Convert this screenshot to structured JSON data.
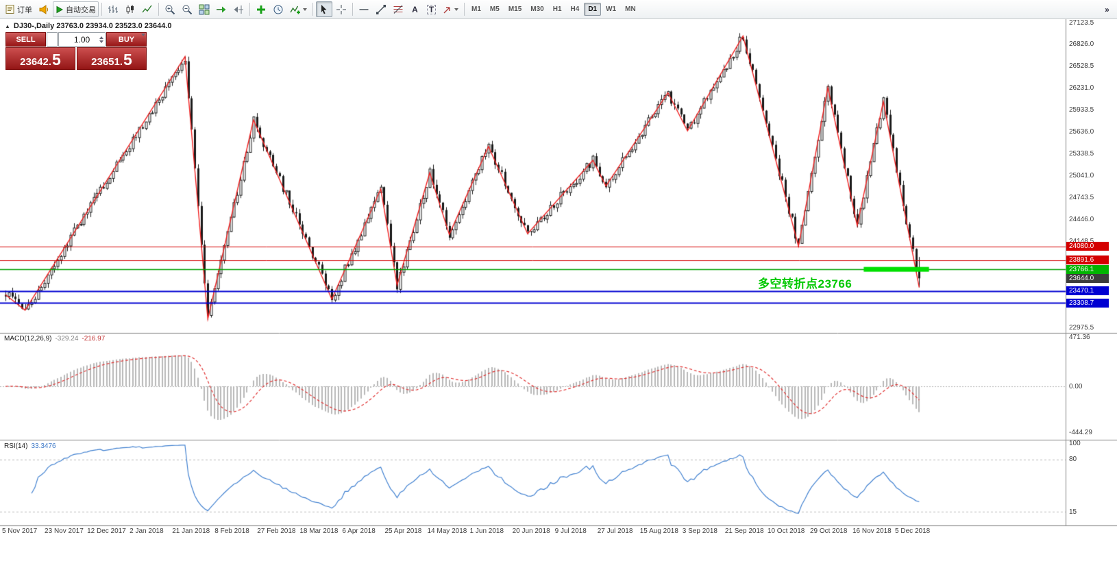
{
  "toolbar": {
    "orders_label": "订单",
    "autotrade_label": "自动交易",
    "timeframes": [
      "M1",
      "M5",
      "M15",
      "M30",
      "H1",
      "H4",
      "D1",
      "W1",
      "MN"
    ],
    "active_timeframe": "D1",
    "icon_glyphs": {
      "text_tool": "A",
      "label_tool": "T",
      "overflow": "»"
    }
  },
  "chart": {
    "collapse_glyph": "▲",
    "title": "DJ30-,Daily  23763.0 23934.0 23523.0 23644.0"
  },
  "trade": {
    "sell_label": "SELL",
    "buy_label": "BUY",
    "volume": "1.00",
    "bid": "23642.5",
    "ask": "23651.5",
    "panel_color": "#bd1c1c"
  },
  "chart_data": {
    "type": "candlestick",
    "symbol": "DJ30-",
    "period": "Daily",
    "ohlc": {
      "open": 23763.0,
      "high": 23934.0,
      "low": 23523.0,
      "close": 23644.0
    },
    "price_scale": {
      "max": 27170,
      "min": 22901
    },
    "axis_labels": [
      27123.5,
      26826.0,
      26528.5,
      26231.0,
      25933.5,
      25636.0,
      25338.5,
      25041.0,
      24743.5,
      24446.0,
      24148.5,
      22975.5
    ],
    "highlight_labels": [
      {
        "text": "24080.0",
        "price": 24080.0,
        "bg": "#d40000"
      },
      {
        "text": "23891.6",
        "price": 23891.6,
        "bg": "#d40000"
      },
      {
        "text": "23766.1",
        "price": 23766.1,
        "bg": "#00b400"
      },
      {
        "text": "23644.0",
        "price": 23644.0,
        "bg": "#3c3c3c"
      },
      {
        "text": "23470.1",
        "price": 23470.1,
        "bg": "#0000d2"
      },
      {
        "text": "23308.7",
        "price": 23308.7,
        "bg": "#0000d2"
      }
    ],
    "hlines": [
      {
        "price": 24080.0,
        "color": "#d40000",
        "width": 1
      },
      {
        "price": 23891.6,
        "color": "#d40000",
        "width": 1
      },
      {
        "price": 23766.1,
        "color": "#00a000",
        "width": 1.5
      },
      {
        "price": 23470.1,
        "color": "#0000d2",
        "width": 2
      },
      {
        "price": 23308.7,
        "color": "#0000d2",
        "width": 2
      }
    ],
    "highlight_segment": {
      "price": 23766.1,
      "from_index": 263,
      "to_index": 283,
      "color": "#00e000",
      "thickness": 7
    },
    "annotation": {
      "text": "多空转折点23766",
      "color": "#00c800"
    },
    "zigzag": {
      "color": "#f02020",
      "pivots": [
        [
          0,
          23420
        ],
        [
          6,
          23210
        ],
        [
          55,
          26660
        ],
        [
          62,
          23090
        ],
        [
          76,
          25800
        ],
        [
          100,
          23360
        ],
        [
          115,
          24860
        ],
        [
          120,
          23550
        ],
        [
          130,
          25080
        ],
        [
          136,
          24240
        ],
        [
          148,
          25440
        ],
        [
          160,
          24250
        ],
        [
          180,
          25250
        ],
        [
          184,
          24900
        ],
        [
          203,
          26170
        ],
        [
          209,
          25650
        ],
        [
          226,
          26940
        ],
        [
          243,
          24080
        ],
        [
          252,
          26240
        ],
        [
          261,
          24360
        ],
        [
          269,
          26050
        ],
        [
          280,
          23520
        ]
      ]
    },
    "candles": {
      "count": 281,
      "seed": 20181210,
      "body_noise": 130,
      "wick_noise": 70,
      "bull_color": "#ffffff",
      "bear_color": "#1a1a1a"
    },
    "macd": {
      "name": "MACD(12,26,9)",
      "value_main": "-329.24",
      "value_signal": "-216.97",
      "axis_labels": [
        "471.36",
        "0.00",
        "-444.29"
      ],
      "hist_color": "#b8b8b8",
      "signal_color": "#e03030"
    },
    "rsi": {
      "name": "RSI(14)",
      "value": "33.3476",
      "axis_labels": [
        "100",
        "80",
        "15"
      ],
      "levels": [
        80,
        15
      ],
      "line_color": "#4080d0"
    },
    "dates": [
      "5 Nov 2017",
      "23 Nov 2017",
      "12 Dec 2017",
      "2 Jan 2018",
      "21 Jan 2018",
      "8 Feb 2018",
      "27 Feb 2018",
      "18 Mar 2018",
      "6 Apr 2018",
      "25 Apr 2018",
      "14 May 2018",
      "1 Jun 2018",
      "20 Jun 2018",
      "9 Jul 2018",
      "27 Jul 2018",
      "15 Aug 2018",
      "3 Sep 2018",
      "21 Sep 2018",
      "10 Oct 2018",
      "29 Oct 2018",
      "16 Nov 2018",
      "5 Dec 2018"
    ]
  }
}
